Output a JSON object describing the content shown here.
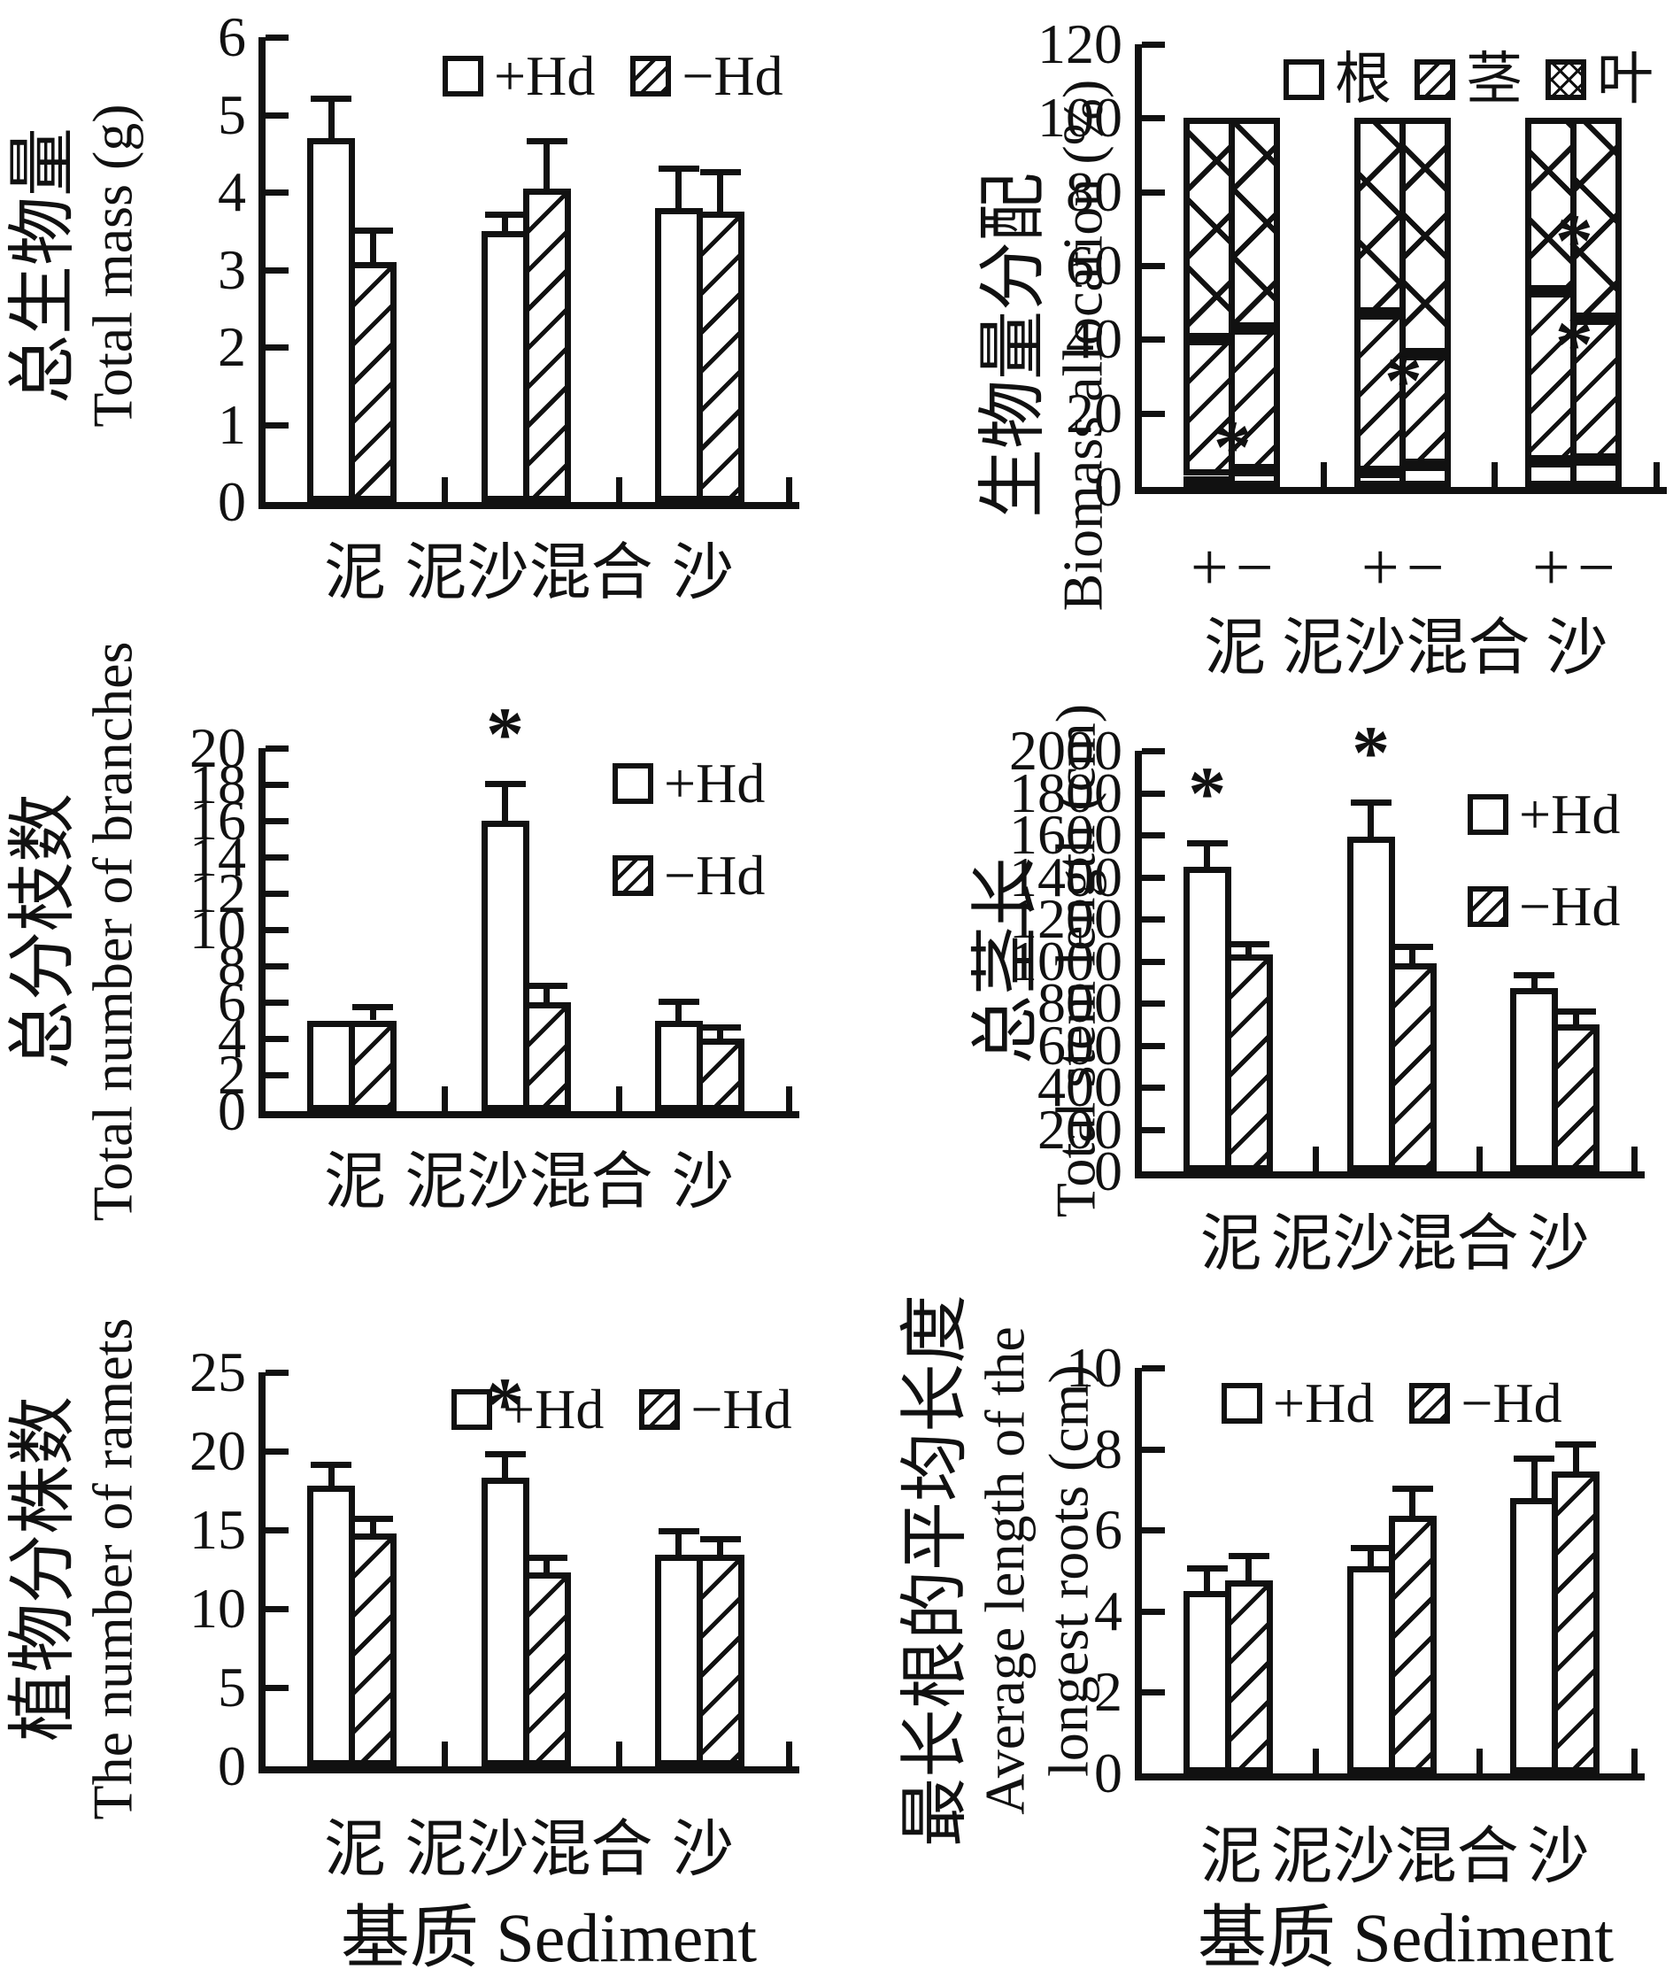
{
  "figure": {
    "background": "#ffffff",
    "ink": "#111111",
    "x_axis_label": "基质 Sediment",
    "categories": [
      "泥",
      "泥沙混合",
      "沙"
    ],
    "treatments": [
      "+Hd",
      "−Hd"
    ]
  },
  "chart_data": [
    {
      "id": "total-mass",
      "type": "bar",
      "ylabel_cn": "总生物量",
      "ylabel_en": "Total mass (g)",
      "ylim": [
        0,
        6
      ],
      "yticks": [
        0,
        1,
        2,
        3,
        4,
        5,
        6
      ],
      "categories": [
        "泥",
        "泥沙混合",
        "沙"
      ],
      "legend": [
        {
          "label": "+Hd",
          "pattern": "plain"
        },
        {
          "label": "−Hd",
          "pattern": "diag"
        }
      ],
      "legend_layout": "row",
      "series": [
        {
          "name": "+Hd",
          "pattern": "plain",
          "values": [
            4.7,
            3.5,
            3.8
          ],
          "errors": [
            0.5,
            0.2,
            0.5
          ],
          "stars": [
            "",
            "",
            ""
          ]
        },
        {
          "name": "−Hd",
          "pattern": "diag",
          "values": [
            3.1,
            4.05,
            3.75
          ],
          "errors": [
            0.4,
            0.6,
            0.5
          ],
          "stars": [
            "",
            "",
            ""
          ]
        }
      ],
      "grid": false
    },
    {
      "id": "biomass-allocation",
      "type": "stacked-bar",
      "ylabel_cn": "生物量分配",
      "ylabel_en": "Biomass allocation (%)",
      "ylim": [
        0,
        120
      ],
      "yticks": [
        0,
        20,
        40,
        60,
        80,
        100,
        120
      ],
      "categories": [
        "泥",
        "泥沙混合",
        "沙"
      ],
      "pair_labels": [
        "+",
        "−"
      ],
      "legend": [
        {
          "label": "根",
          "pattern": "plain"
        },
        {
          "label": "茎",
          "pattern": "diag"
        },
        {
          "label": "叶",
          "pattern": "cross"
        }
      ],
      "legend_layout": "row",
      "groups": [
        {
          "category": "泥",
          "bars": [
            {
              "sign": "+",
              "segments": [
                3,
                37,
                60
              ],
              "stars": []
            },
            {
              "sign": "−",
              "segments": [
                4.5,
                38.5,
                57
              ],
              "stars": [
                10
              ]
            }
          ]
        },
        {
          "category": "泥沙混合",
          "bars": [
            {
              "sign": "+",
              "segments": [
                4,
                43,
                53
              ],
              "stars": []
            },
            {
              "sign": "−",
              "segments": [
                6,
                30,
                64
              ],
              "stars": [
                28
              ]
            }
          ]
        },
        {
          "category": "沙",
          "bars": [
            {
              "sign": "+",
              "segments": [
                7,
                46,
                47
              ],
              "stars": []
            },
            {
              "sign": "−",
              "segments": [
                7.5,
                38,
                54.5
              ],
              "stars": [
                38,
                66
              ]
            }
          ]
        }
      ],
      "grid": false
    },
    {
      "id": "branches",
      "type": "bar",
      "ylabel_cn": "总分枝数",
      "ylabel_en": "Total number of branches",
      "ylim": [
        0,
        20
      ],
      "yticks": [
        0,
        2,
        4,
        6,
        8,
        10,
        12,
        14,
        16,
        18,
        20
      ],
      "categories": [
        "泥",
        "泥沙混合",
        "沙"
      ],
      "legend": [
        {
          "label": "+Hd",
          "pattern": "plain"
        },
        {
          "label": "−Hd",
          "pattern": "diag"
        }
      ],
      "legend_layout": "column",
      "series": [
        {
          "name": "+Hd",
          "pattern": "plain",
          "values": [
            5,
            16,
            5
          ],
          "errors": [
            0,
            2,
            1
          ],
          "stars": [
            "",
            "*",
            ""
          ]
        },
        {
          "name": "−Hd",
          "pattern": "diag",
          "values": [
            5,
            6,
            4
          ],
          "errors": [
            0.7,
            0.9,
            0.6
          ],
          "stars": [
            "",
            "",
            ""
          ]
        }
      ],
      "grid": false
    },
    {
      "id": "stem-length",
      "type": "bar",
      "ylabel_cn": "总茎长",
      "ylabel_en": "Total stem length (cm)",
      "ylim": [
        0,
        2000
      ],
      "yticks": [
        0,
        200,
        400,
        600,
        800,
        1000,
        1200,
        1400,
        1600,
        1800,
        2000
      ],
      "categories": [
        "泥",
        "泥沙混合",
        "沙"
      ],
      "legend": [
        {
          "label": "+Hd",
          "pattern": "plain"
        },
        {
          "label": "−Hd",
          "pattern": "diag"
        }
      ],
      "legend_layout": "column",
      "series": [
        {
          "name": "+Hd",
          "pattern": "plain",
          "values": [
            1450,
            1590,
            870
          ],
          "errors": [
            110,
            160,
            60
          ],
          "stars": [
            "*",
            "*",
            ""
          ]
        },
        {
          "name": "−Hd",
          "pattern": "diag",
          "values": [
            1030,
            990,
            700
          ],
          "errors": [
            50,
            75,
            60
          ],
          "stars": [
            "",
            "",
            ""
          ]
        }
      ],
      "grid": false
    },
    {
      "id": "ramets",
      "type": "bar",
      "ylabel_cn": "植物分株数",
      "ylabel_en": "The number of ramets",
      "ylim": [
        0,
        25
      ],
      "yticks": [
        0,
        5,
        10,
        15,
        20,
        25
      ],
      "categories": [
        "泥",
        "泥沙混合",
        "沙"
      ],
      "legend": [
        {
          "label": "+Hd",
          "pattern": "plain"
        },
        {
          "label": "−Hd",
          "pattern": "diag"
        }
      ],
      "legend_layout": "row",
      "series": [
        {
          "name": "+Hd",
          "pattern": "plain",
          "values": [
            17.8,
            18.3,
            13.4
          ],
          "errors": [
            1.3,
            1.5,
            1.5
          ],
          "stars": [
            "",
            "*",
            ""
          ]
        },
        {
          "name": "−Hd",
          "pattern": "diag",
          "values": [
            14.8,
            12.3,
            13.4
          ],
          "errors": [
            0.9,
            0.9,
            1.0
          ],
          "stars": [
            "",
            "",
            ""
          ]
        }
      ],
      "grid": false
    },
    {
      "id": "root-length",
      "type": "bar",
      "ylabel_cn": "最长根的平均长度",
      "ylabel_en": "Average length of the",
      "ylabel_en2": "longest roots (cm)",
      "ylim": [
        0,
        10
      ],
      "yticks": [
        0,
        2,
        4,
        6,
        8,
        10
      ],
      "categories": [
        "泥",
        "泥沙混合",
        "沙"
      ],
      "legend": [
        {
          "label": "+Hd",
          "pattern": "plain"
        },
        {
          "label": "−Hd",
          "pattern": "diag"
        }
      ],
      "legend_layout": "row",
      "series": [
        {
          "name": "+Hd",
          "pattern": "plain",
          "values": [
            4.5,
            5.1,
            6.8
          ],
          "errors": [
            0.55,
            0.45,
            0.95
          ],
          "stars": [
            "",
            "",
            ""
          ]
        },
        {
          "name": "−Hd",
          "pattern": "diag",
          "values": [
            4.75,
            6.35,
            7.45
          ],
          "errors": [
            0.6,
            0.65,
            0.65
          ],
          "stars": [
            "",
            "",
            ""
          ]
        }
      ],
      "grid": false
    }
  ]
}
